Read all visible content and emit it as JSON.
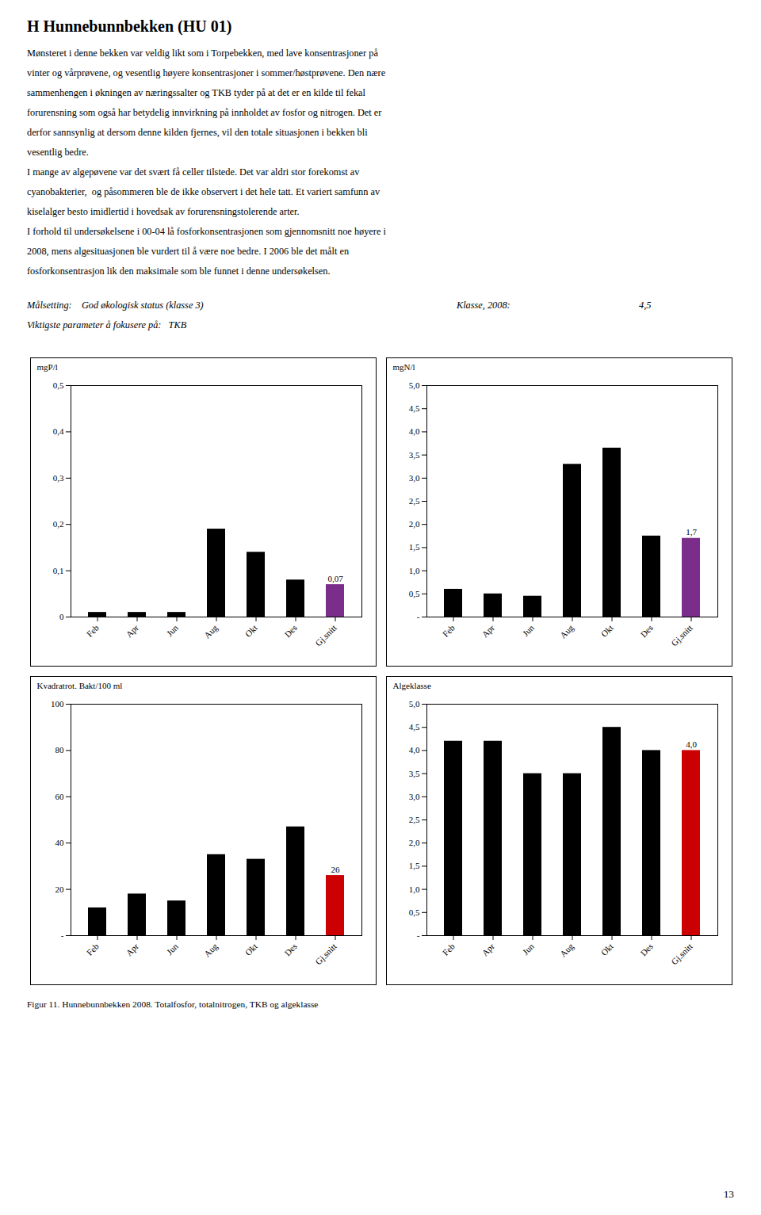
{
  "title": "H    Hunnebunnbekken (HU 01)",
  "annotations": [
    "Mønsteret i denne bekken var veldig likt som i Torpebekken, med lave konsentrasjoner på",
    "vinter og vårprøvene, og vesentlig høyere konsentrasjoner i sommer/høstprøvene. Den nære",
    "sammenhengen i økningen av næringssalter og TKB tyder på at det er en kilde til fekal",
    "forurensning som også har betydelig innvirkning på innholdet av fosfor og nitrogen. Det er",
    "derfor sannsynlig at dersom denne kilden fjernes, vil den totale situasjonen i bekken bli",
    "vesentlig bedre.",
    "I mange av algepøvene var det svært få celler tilstede. Det var aldri stor forekomst av",
    "cyanobakterier,  og påsommeren ble de ikke observert i det hele tatt. Et variert samfunn av",
    "kiselalger besto imidlertid i hovedsak av forurensningstolerende arter.",
    "I forhold til undersøkelsene i 00-04 lå fosforkonsentrasjonen som gjennomsnitt noe høyere i",
    "2008, mens algesituasjonen ble vurdert til å være noe bedre. I 2006 ble det målt en",
    "fosforkonsentrasjon lik den maksimale som ble funnet i denne undersøkelsen.",
    "Målsetting:    God økologisk status (klasse 3)",
    "Viktigste parameter å fokusere på:   TKB",
    "Klasse, 2008:",
    "4,5",
    "13"
  ],
  "caption": "Figur 11. Hunnebunnbekken 2008. Totalfosfor, totalnitrogen, TKB og algeklasse",
  "chart_data": [
    {
      "type": "bar",
      "categories": [
        "Feb",
        "Apr",
        "Jun",
        "Aug",
        "Okt",
        "Des",
        "Gj.snitt"
      ],
      "values": [
        0.01,
        0.01,
        0.01,
        0.19,
        0.14,
        0.08,
        0.07
      ],
      "value_labels": [
        null,
        null,
        null,
        null,
        null,
        null,
        "0,07"
      ],
      "data_labels": true,
      "colors": [
        "#000000",
        "#000000",
        "#000000",
        "#000000",
        "#000000",
        "#000000",
        "#7B2D8B"
      ],
      "ylabel": "mgP/l",
      "ylim": [
        0.0,
        0.5
      ],
      "yticks": [
        0,
        {
          "value": 0.1,
          "label": "0,1"
        },
        {
          "value": 0.2,
          "label": "0,2"
        },
        {
          "value": 0.3,
          "label": "0,3"
        },
        {
          "value": 0.4,
          "label": "0,4"
        },
        {
          "value": 0.5,
          "label": "0,5"
        }
      ],
      "grid": false
    },
    {
      "type": "bar",
      "categories": [
        "Feb",
        "Apr",
        "Jun",
        "Aug",
        "Okt",
        "Des",
        "Gj.snitt"
      ],
      "values": [
        0.6,
        0.5,
        0.45,
        3.3,
        3.65,
        1.75,
        1.7
      ],
      "value_labels": [
        null,
        null,
        null,
        null,
        null,
        null,
        "1,7"
      ],
      "data_labels": true,
      "colors": [
        "#000000",
        "#000000",
        "#000000",
        "#000000",
        "#000000",
        "#000000",
        "#7B2D8B"
      ],
      "ylabel": "mgN/l",
      "ylim": [
        0.0,
        5.0
      ],
      "yticks": [
        {
          "value": 0.0,
          "label": "-"
        },
        {
          "value": 0.5,
          "label": "0,5"
        },
        {
          "value": 1.0,
          "label": "1,0"
        },
        {
          "value": 1.5,
          "label": "1,5"
        },
        {
          "value": 2.0,
          "label": "2,0"
        },
        {
          "value": 2.5,
          "label": "2,5"
        },
        {
          "value": 3.0,
          "label": "3,0"
        },
        {
          "value": 3.5,
          "label": "3,5"
        },
        {
          "value": 4.0,
          "label": "4,0"
        },
        {
          "value": 4.5,
          "label": "4,5"
        },
        {
          "value": 5.0,
          "label": "5,0"
        }
      ],
      "grid": false
    },
    {
      "type": "bar",
      "categories": [
        "Feb",
        "Apr",
        "Jun",
        "Aug",
        "Okt",
        "Des",
        "Gj.snitt"
      ],
      "values": [
        12,
        18,
        15,
        35,
        33,
        47,
        26
      ],
      "value_labels": [
        null,
        null,
        null,
        null,
        null,
        null,
        "26"
      ],
      "data_labels": true,
      "colors": [
        "#000000",
        "#000000",
        "#000000",
        "#000000",
        "#000000",
        "#000000",
        "#cc0000"
      ],
      "ylabel": "Kvadratrot. Bakt/100 ml",
      "ylim": [
        0,
        100
      ],
      "yticks": [
        {
          "value": 0,
          "label": "-"
        },
        20,
        40,
        60,
        80,
        100
      ],
      "grid": false
    },
    {
      "type": "bar",
      "categories": [
        "Feb",
        "Apr",
        "Jun",
        "Aug",
        "Okt",
        "Des",
        "Gj.snitt"
      ],
      "values": [
        4.2,
        4.2,
        3.5,
        3.5,
        4.5,
        4.0,
        4.0
      ],
      "value_labels": [
        null,
        null,
        null,
        null,
        null,
        null,
        "4,0"
      ],
      "data_labels": true,
      "colors": [
        "#000000",
        "#000000",
        "#000000",
        "#000000",
        "#000000",
        "#000000",
        "#cc0000"
      ],
      "ylabel": "Algeklasse",
      "ylim": [
        0.0,
        5.0
      ],
      "yticks": [
        {
          "value": 0.0,
          "label": "-"
        },
        {
          "value": 0.5,
          "label": "0,5"
        },
        {
          "value": 1.0,
          "label": "1,0"
        },
        {
          "value": 1.5,
          "label": "1,5"
        },
        {
          "value": 2.0,
          "label": "2,0"
        },
        {
          "value": 2.5,
          "label": "2,5"
        },
        {
          "value": 3.0,
          "label": "3,0"
        },
        {
          "value": 3.5,
          "label": "3,5"
        },
        {
          "value": 4.0,
          "label": "4,0"
        },
        {
          "value": 4.5,
          "label": "4,5"
        },
        {
          "value": 5.0,
          "label": "5,0"
        }
      ],
      "grid": false
    }
  ]
}
